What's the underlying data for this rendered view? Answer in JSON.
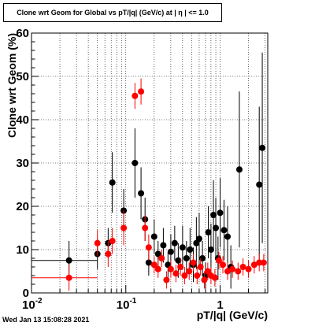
{
  "title": "Clone wrt Geom for Global vs pT/|q| (GeV/c) at | η | <= 1.0",
  "timestamp": "Wed Jan 13 15:08:28 2021",
  "chart_data": {
    "type": "scatter",
    "title": "Clone wrt Geom for Global vs pT/|q| (GeV/c) at | η | <= 1.0",
    "xlabel": "pT/|q| (GeV/c)",
    "ylabel": "Clone wrt Geom (%)",
    "xscale": "log",
    "xlim": [
      0.01,
      3.2
    ],
    "ylim": [
      0,
      60
    ],
    "x_tick_labels": [
      "10^-2",
      "10^-1",
      "1"
    ],
    "y_tick_labels": [
      "0",
      "10",
      "20",
      "30",
      "40",
      "50",
      "60"
    ],
    "grid": true,
    "colors": {
      "series_black": "#000000",
      "series_red": "#ff0000"
    },
    "series": [
      {
        "color": "#000000",
        "points": [
          {
            "x": 0.025,
            "y": 7.5,
            "xerr": [
              0.015,
              0.025
            ],
            "yerr": 4.5
          },
          {
            "x": 0.05,
            "y": 9.0,
            "yerr": 3.5
          },
          {
            "x": 0.065,
            "y": 11.5,
            "yerr": 3.5
          },
          {
            "x": 0.072,
            "y": 25.5,
            "yerr": 7
          },
          {
            "x": 0.095,
            "y": 19.0,
            "yerr": 5
          },
          {
            "x": 0.125,
            "y": 30.0,
            "yerr": 8
          },
          {
            "x": 0.145,
            "y": 23.0,
            "yerr": 6
          },
          {
            "x": 0.16,
            "y": 17.0,
            "yerr": 5
          },
          {
            "x": 0.175,
            "y": 7.0,
            "yerr": 3
          },
          {
            "x": 0.2,
            "y": 13.0,
            "yerr": 4
          },
          {
            "x": 0.22,
            "y": 9.0,
            "yerr": 3
          },
          {
            "x": 0.25,
            "y": 11.0,
            "yerr": 4
          },
          {
            "x": 0.28,
            "y": 6.5,
            "yerr": 3
          },
          {
            "x": 0.3,
            "y": 9.5,
            "yerr": 4
          },
          {
            "x": 0.33,
            "y": 11.5,
            "yerr": 4
          },
          {
            "x": 0.36,
            "y": 7.5,
            "yerr": 4
          },
          {
            "x": 0.4,
            "y": 10.5,
            "yerr": 5
          },
          {
            "x": 0.44,
            "y": 8.0,
            "yerr": 4
          },
          {
            "x": 0.48,
            "y": 10.0,
            "yerr": 5
          },
          {
            "x": 0.52,
            "y": 6.5,
            "yerr": 4
          },
          {
            "x": 0.56,
            "y": 11.5,
            "yerr": 6
          },
          {
            "x": 0.6,
            "y": 12.5,
            "yerr": 6
          },
          {
            "x": 0.65,
            "y": 8.0,
            "yerr": 4
          },
          {
            "x": 0.7,
            "y": 4.0,
            "yerr": 3
          },
          {
            "x": 0.75,
            "y": 14.0,
            "yerr": 6
          },
          {
            "x": 0.8,
            "y": 10.0,
            "yerr": 6
          },
          {
            "x": 0.85,
            "y": 18.0,
            "yerr": 8
          },
          {
            "x": 0.9,
            "y": 15.0,
            "yerr": 7
          },
          {
            "x": 0.95,
            "y": 8.0,
            "yerr": 5
          },
          {
            "x": 1.0,
            "y": 18.5,
            "yerr": 8
          },
          {
            "x": 1.1,
            "y": 14.5,
            "yerr": 7
          },
          {
            "x": 1.2,
            "y": 13.0,
            "yerr": 7
          },
          {
            "x": 1.3,
            "y": 6.0,
            "yerr": 5
          },
          {
            "x": 1.6,
            "y": 28.5,
            "yerr": 18
          },
          {
            "x": 2.6,
            "y": 25.0,
            "yerr": 18
          },
          {
            "x": 2.8,
            "y": 33.5,
            "yerr": 22
          }
        ]
      },
      {
        "color": "#ff0000",
        "points": [
          {
            "x": 0.025,
            "y": 3.5,
            "xerr": [
              0.015,
              0.025
            ],
            "yerr": 3
          },
          {
            "x": 0.05,
            "y": 11.5,
            "yerr": 3
          },
          {
            "x": 0.065,
            "y": 9.0,
            "yerr": 3
          },
          {
            "x": 0.072,
            "y": 12.0,
            "yerr": 3
          },
          {
            "x": 0.095,
            "y": 15.0,
            "yerr": 4
          },
          {
            "x": 0.125,
            "y": 45.5,
            "yerr": 3
          },
          {
            "x": 0.145,
            "y": 46.5,
            "yerr": 3
          },
          {
            "x": 0.16,
            "y": 15.0,
            "yerr": 3
          },
          {
            "x": 0.175,
            "y": 10.5,
            "yerr": 3
          },
          {
            "x": 0.2,
            "y": 6.5,
            "yerr": 2
          },
          {
            "x": 0.22,
            "y": 5.5,
            "yerr": 2
          },
          {
            "x": 0.24,
            "y": 8.0,
            "yerr": 2
          },
          {
            "x": 0.27,
            "y": 3.0,
            "yerr": 2
          },
          {
            "x": 0.3,
            "y": 5.5,
            "yerr": 2
          },
          {
            "x": 0.34,
            "y": 4.5,
            "yerr": 2
          },
          {
            "x": 0.38,
            "y": 6.0,
            "yerr": 2
          },
          {
            "x": 0.42,
            "y": 4.0,
            "yerr": 2
          },
          {
            "x": 0.47,
            "y": 5.0,
            "yerr": 2
          },
          {
            "x": 0.52,
            "y": 7.0,
            "yerr": 2
          },
          {
            "x": 0.57,
            "y": 4.0,
            "yerr": 2
          },
          {
            "x": 0.62,
            "y": 6.0,
            "yerr": 2
          },
          {
            "x": 0.68,
            "y": 3.0,
            "yerr": 2
          },
          {
            "x": 0.74,
            "y": 5.0,
            "yerr": 2
          },
          {
            "x": 0.8,
            "y": 4.0,
            "yerr": 2
          },
          {
            "x": 0.88,
            "y": 3.5,
            "yerr": 2
          },
          {
            "x": 0.97,
            "y": 7.5,
            "yerr": 2
          },
          {
            "x": 1.07,
            "y": 6.5,
            "yerr": 2
          },
          {
            "x": 1.2,
            "y": 5.0,
            "yerr": 2
          },
          {
            "x": 1.35,
            "y": 5.5,
            "yerr": 2
          },
          {
            "x": 1.55,
            "y": 5.0,
            "yerr": 2
          },
          {
            "x": 1.75,
            "y": 6.0,
            "yerr": 2
          },
          {
            "x": 2.0,
            "y": 5.5,
            "yerr": 2
          },
          {
            "x": 2.3,
            "y": 6.5,
            "yerr": 2
          },
          {
            "x": 2.6,
            "y": 7.0,
            "yerr": 2
          },
          {
            "x": 2.9,
            "y": 7.0,
            "yerr": 2
          }
        ]
      }
    ]
  }
}
